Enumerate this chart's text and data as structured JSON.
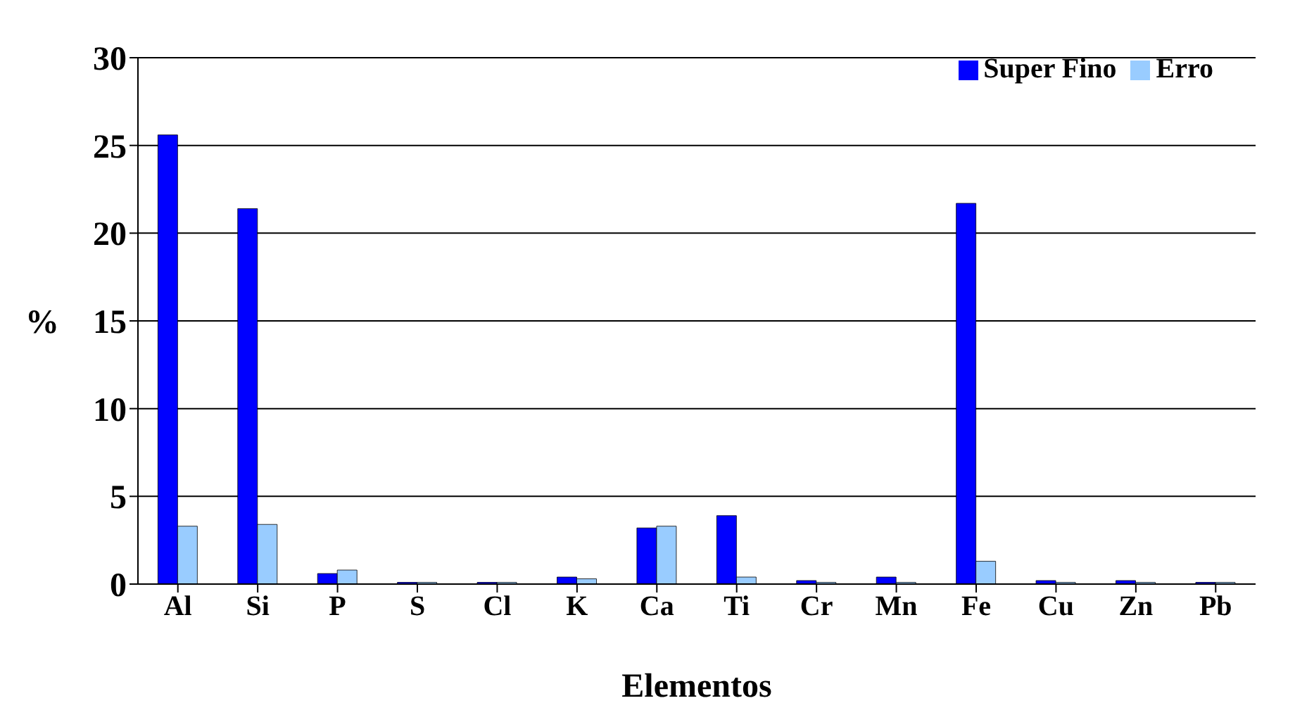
{
  "chart_data": {
    "type": "bar",
    "xlabel": "Elementos",
    "ylabel": "%",
    "categories": [
      "Al",
      "Si",
      "P",
      "S",
      "Cl",
      "K",
      "Ca",
      "Ti",
      "Cr",
      "Mn",
      "Fe",
      "Cu",
      "Zn",
      "Pb"
    ],
    "series": [
      {
        "name": "Super Fino",
        "color": "#0000ff",
        "values": [
          25.6,
          21.4,
          0.6,
          0.1,
          0.1,
          0.4,
          3.2,
          3.9,
          0.2,
          0.4,
          21.7,
          0.2,
          0.2,
          0.1
        ]
      },
      {
        "name": "Erro",
        "color": "#99ccff",
        "values": [
          3.3,
          3.4,
          0.8,
          0.1,
          0.1,
          0.3,
          3.3,
          0.4,
          0.1,
          0.1,
          1.3,
          0.1,
          0.1,
          0.1
        ]
      }
    ],
    "ylim": [
      0,
      30
    ],
    "yticks": [
      0,
      5,
      10,
      15,
      20,
      25,
      30
    ],
    "grid": "y",
    "legend": "top right"
  }
}
